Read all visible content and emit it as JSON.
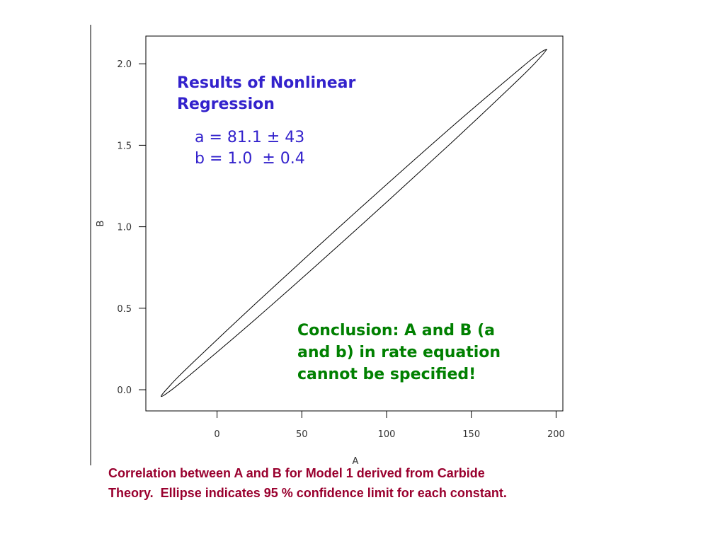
{
  "chart_data": {
    "type": "line",
    "x_label": "A",
    "y_label": "B",
    "title_lines": [
      "Results of Nonlinear",
      "Regression"
    ],
    "result_lines": [
      "a = 81.1 ± 43",
      "b = 1.0  ± 0.4"
    ],
    "conclusion_lines": [
      "Conclusion: A and B (a",
      "and b) in rate equation",
      "cannot be specified!"
    ],
    "caption_lines": [
      "Correlation between A and B for Model 1 derived from Carbide",
      "Theory.  Ellipse indicates 95 % confidence limit for each constant."
    ],
    "xlim": [
      -42,
      204
    ],
    "ylim": [
      -0.13,
      2.17
    ],
    "xticks": [
      0,
      50,
      100,
      150,
      200
    ],
    "yticks": [
      {
        "value": 0,
        "label": "0.0"
      },
      {
        "value": 0.5,
        "label": "0.5"
      },
      {
        "value": 1,
        "label": "1.0"
      },
      {
        "value": 1.5,
        "label": "1.5"
      },
      {
        "value": 2,
        "label": "2.0"
      }
    ],
    "series": [
      {
        "color": "#000000",
        "x": [
          194.6,
          190.7,
          179.4,
          137.7,
          80.8,
          23.9,
          -17.8,
          -29.1,
          -33.0,
          -29.1,
          -17.8,
          23.9,
          80.8,
          137.7,
          179.4,
          190.7,
          194.6
        ],
        "values": [
          2.09,
          2.068,
          1.975,
          1.606,
          1.08,
          0.54,
          0.131,
          0.01,
          -0.04,
          -0.018,
          0.075,
          0.444,
          0.97,
          1.51,
          1.919,
          2.04,
          2.09
        ]
      }
    ]
  }
}
